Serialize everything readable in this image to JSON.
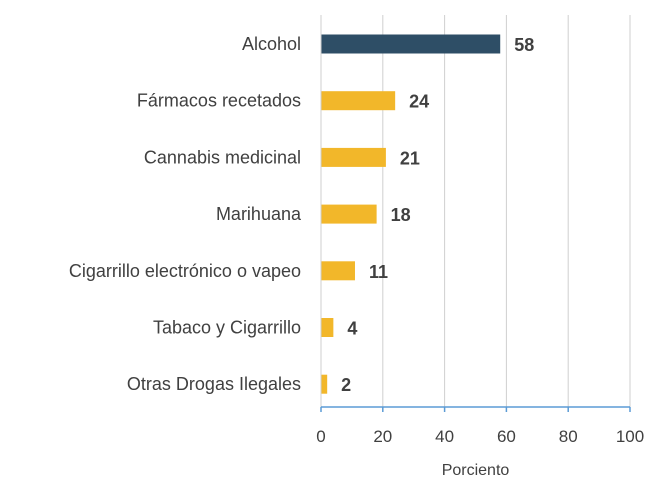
{
  "chart_data": {
    "type": "bar",
    "orientation": "horizontal",
    "categories": [
      "Alcohol",
      "Fármacos recetados",
      "Cannabis medicinal",
      "Marihuana",
      "Cigarrillo electrónico o vapeo",
      "Tabaco y Cigarrillo",
      "Otras Drogas Ilegales"
    ],
    "values": [
      58,
      24,
      21,
      18,
      11,
      4,
      2
    ],
    "xlabel": "Porciento",
    "ylabel": "",
    "xlim": [
      0,
      100
    ],
    "x_ticks": [
      0,
      20,
      40,
      60,
      80,
      100
    ],
    "grid": true,
    "data_labels": true,
    "highlight_index": 0,
    "colors": {
      "highlight": "#2e4e66",
      "bar": "#f2b72a",
      "grid": "#cfcfcf",
      "axis": "#5b9bd5",
      "text": "#404040"
    }
  }
}
